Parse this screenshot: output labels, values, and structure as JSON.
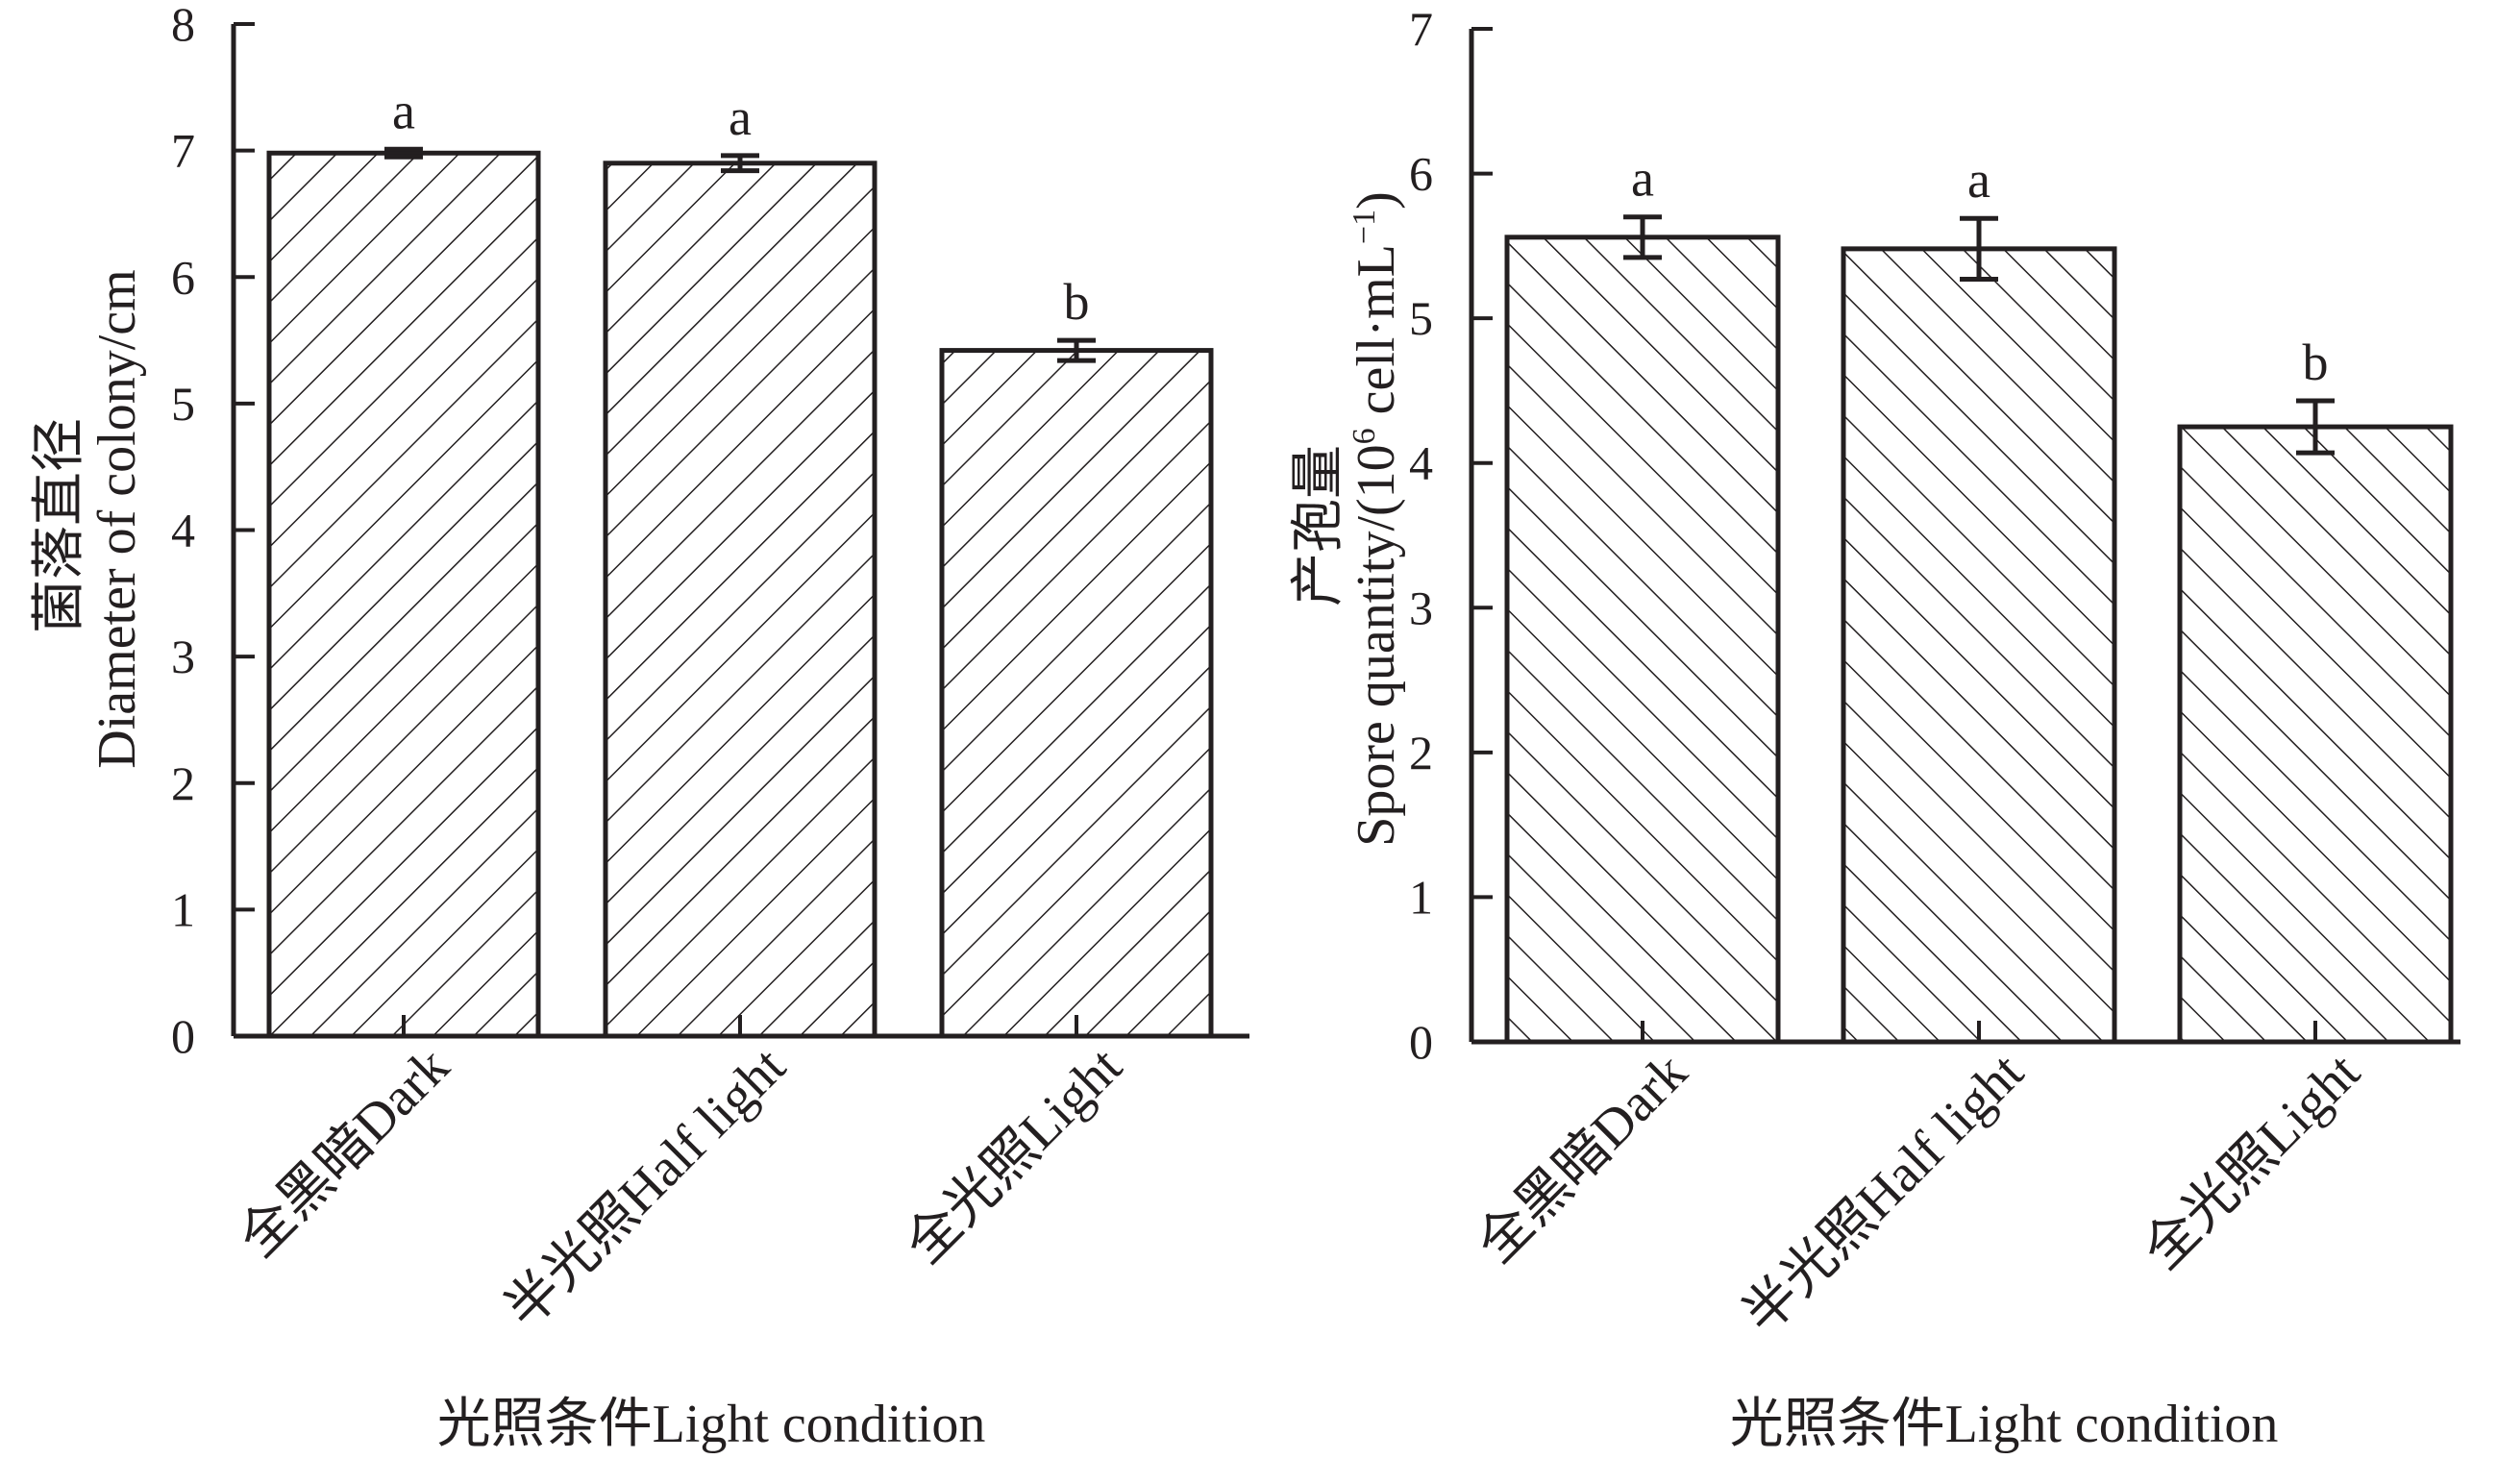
{
  "chart_data": [
    {
      "type": "bar",
      "categories": [
        "全黑暗Dark",
        "半光照Half light",
        "全光照Light"
      ],
      "values": [
        6.98,
        6.9,
        5.42
      ],
      "errors": [
        0.03,
        0.06,
        0.08
      ],
      "significance": [
        "a",
        "a",
        "b"
      ],
      "xlabel": "光照条件Light condition",
      "ylabel_cn": "菌落直径",
      "ylabel_en": "Diameter of colony/cm",
      "ylim": [
        0,
        8
      ],
      "yticks": [
        0,
        1,
        2,
        3,
        4,
        5,
        6,
        7,
        8
      ],
      "grid": false,
      "pattern": "hatch-forward"
    },
    {
      "type": "bar",
      "categories": [
        "全黑暗Dark",
        "半光照Half light",
        "全光照Light"
      ],
      "values": [
        5.56,
        5.48,
        4.25
      ],
      "errors": [
        0.14,
        0.21,
        0.18
      ],
      "significance": [
        "a",
        "a",
        "b"
      ],
      "xlabel": "光照条件Light condition",
      "ylabel_cn": "产孢量",
      "ylabel_en_prefix": "Spore quantity/(10",
      "ylabel_en_sup": "6",
      "ylabel_en_mid": " cell·mL",
      "ylabel_en_sup2": "−1",
      "ylabel_en_suffix": ")",
      "ylim": [
        0,
        7
      ],
      "yticks": [
        0,
        1,
        2,
        3,
        4,
        5,
        6,
        7
      ],
      "grid": false,
      "pattern": "hatch-backward"
    }
  ],
  "colors": {
    "ink": "#231f20",
    "background": "#ffffff"
  }
}
